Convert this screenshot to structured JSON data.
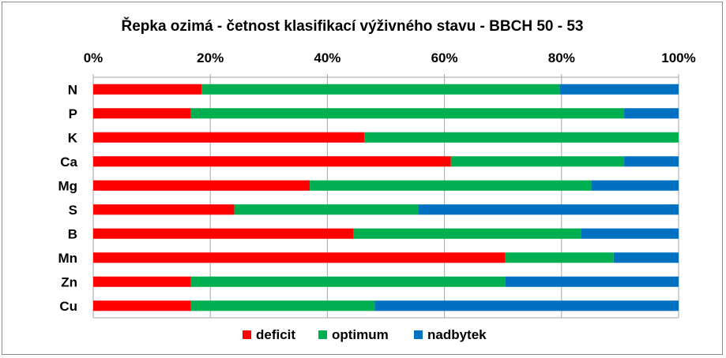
{
  "chart_data": {
    "type": "bar",
    "orientation": "horizontal",
    "stacked": "percent",
    "title": "Řepka ozimá  - četnost klasifikací výživného stavu - BBCH 50 - 53",
    "categories": [
      "N",
      "P",
      "K",
      "Ca",
      "Mg",
      "S",
      "B",
      "Mn",
      "Zn",
      "Cu"
    ],
    "series": [
      {
        "name": "deficit",
        "color": "#ff0000",
        "values": [
          18.5,
          16.7,
          46.3,
          61.1,
          37.0,
          24.1,
          44.4,
          70.4,
          16.7,
          16.7
        ]
      },
      {
        "name": "optimum",
        "color": "#00b050",
        "values": [
          61.2,
          74.0,
          53.7,
          29.6,
          48.1,
          31.4,
          38.9,
          18.5,
          53.7,
          31.4
        ]
      },
      {
        "name": "nadbytek",
        "color": "#0070c0",
        "values": [
          20.3,
          9.3,
          0.0,
          9.3,
          14.9,
          44.5,
          16.7,
          11.1,
          29.6,
          51.9
        ]
      }
    ],
    "xlim": [
      0,
      100
    ],
    "x_ticks": [
      "0%",
      "20%",
      "40%",
      "60%",
      "80%",
      "100%"
    ],
    "x_axis_position": "top",
    "grid": "vertical",
    "legend_position": "bottom"
  }
}
